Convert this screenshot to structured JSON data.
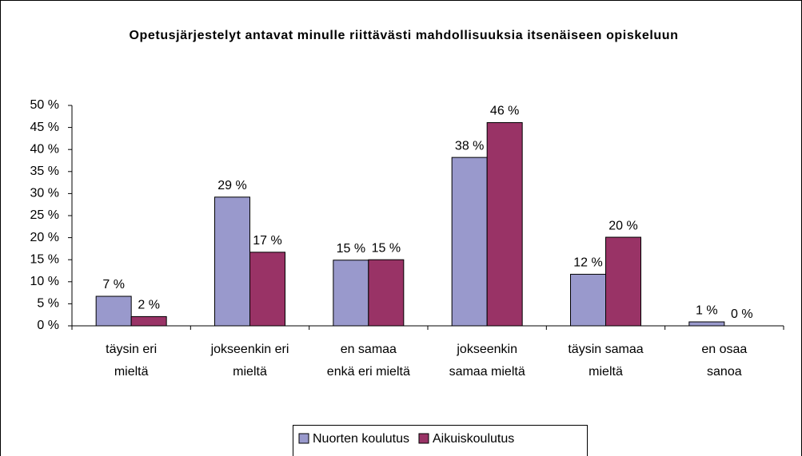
{
  "chart_data": {
    "type": "bar",
    "title": "Opetusjärjestelyt antavat minulle riittävästi mahdollisuuksia itsenäiseen opiskeluun",
    "categories": [
      [
        "täysin eri",
        "mieltä"
      ],
      [
        "jokseenkin eri",
        "mieltä"
      ],
      [
        "en samaa",
        "enkä eri mieltä"
      ],
      [
        "jokseenkin",
        "samaa mieltä"
      ],
      [
        "täysin samaa",
        "mieltä"
      ],
      [
        "en osaa",
        "sanoa"
      ]
    ],
    "series": [
      {
        "name": "Nuorten koulutus",
        "color": "#9999cc",
        "values": [
          6.7,
          29.2,
          14.9,
          38.2,
          11.7,
          0.9
        ],
        "value_labels": [
          "7 %",
          "29 %",
          "15 %",
          "38 %",
          "12 %",
          "1 %"
        ]
      },
      {
        "name": "Aikuiskoulutus",
        "color": "#993366",
        "values": [
          2.1,
          16.7,
          15,
          46.1,
          20.1,
          0
        ],
        "value_labels": [
          "2 %",
          "17 %",
          "15 %",
          "46 %",
          "20 %",
          "0 %"
        ]
      }
    ],
    "ylim": [
      0,
      50
    ],
    "yticks": [
      {
        "value": 0,
        "label": "0 %"
      },
      {
        "value": 5,
        "label": "5 %"
      },
      {
        "value": 10,
        "label": "10 %"
      },
      {
        "value": 15,
        "label": "15 %"
      },
      {
        "value": 20,
        "label": "20 %"
      },
      {
        "value": 25,
        "label": "25 %"
      },
      {
        "value": 30,
        "label": "30 %"
      },
      {
        "value": 35,
        "label": "35 %"
      },
      {
        "value": 40,
        "label": "40 %"
      },
      {
        "value": 45,
        "label": "45 %"
      },
      {
        "value": 50,
        "label": "50 %"
      }
    ],
    "legend": "bottom"
  }
}
